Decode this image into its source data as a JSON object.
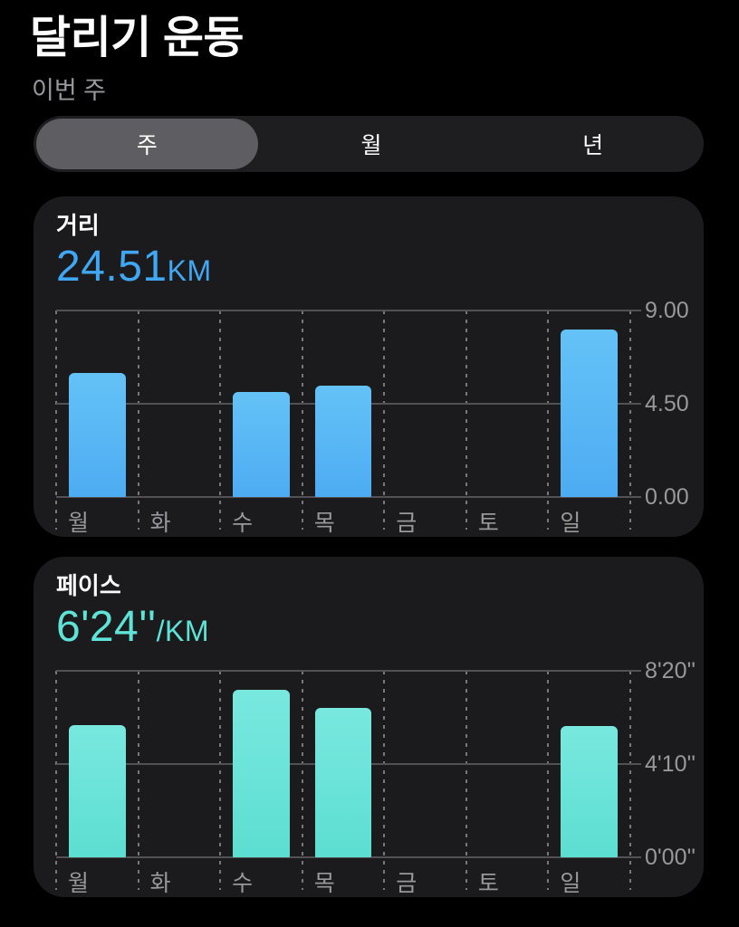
{
  "header": {
    "title": "달리기 운동",
    "subtitle": "이번 주"
  },
  "segmented_control": {
    "options": [
      {
        "label": "주",
        "selected": true
      },
      {
        "label": "월",
        "selected": false
      },
      {
        "label": "년",
        "selected": false
      }
    ]
  },
  "cards": [
    {
      "metric_label": "거리",
      "value": "24.51",
      "unit": "KM",
      "accent_color": "#3fa7f3",
      "bar_gradient_top": "#64c2f7",
      "bar_gradient_bottom": "#4dacf2"
    },
    {
      "metric_label": "페이스",
      "value": "6'24''",
      "unit": "/KM",
      "accent_color": "#5fe3d7",
      "bar_gradient_top": "#79e8df",
      "bar_gradient_bottom": "#5cded1"
    }
  ],
  "chart_data": [
    {
      "type": "bar",
      "title": "거리",
      "values_unit": "km",
      "categories": [
        "월",
        "화",
        "수",
        "목",
        "금",
        "토",
        "일"
      ],
      "values": [
        5.98,
        0,
        5.09,
        5.37,
        0,
        0,
        8.07
      ],
      "ylim": [
        0,
        9
      ],
      "yticks": [
        {
          "value": 9,
          "label": "9.00"
        },
        {
          "value": 4.5,
          "label": "4.50"
        },
        {
          "value": 0,
          "label": "0.00"
        }
      ],
      "legend": "none",
      "grid": {
        "horizontal": "solid",
        "vertical": "dashed",
        "ticks_side": "right"
      }
    },
    {
      "type": "bar",
      "title": "페이스",
      "values_unit": "seconds_per_km",
      "categories": [
        "월",
        "화",
        "수",
        "목",
        "금",
        "토",
        "일"
      ],
      "values": [
        355,
        0,
        448,
        401,
        0,
        0,
        352
      ],
      "ylim": [
        0,
        500
      ],
      "yticks": [
        {
          "value": 500,
          "label": "8'20''"
        },
        {
          "value": 250,
          "label": "4'10''"
        },
        {
          "value": 0,
          "label": "0'00''"
        }
      ],
      "legend": "none",
      "grid": {
        "horizontal": "solid",
        "vertical": "dashed",
        "ticks_side": "right"
      }
    }
  ],
  "theme": {
    "page_background": "#000000",
    "card_background": "#1b1b1e",
    "text_primary": "#ffffff",
    "text_secondary": "#98989d",
    "grid_line": "#515156",
    "segmented_track": "#1e1e20",
    "segmented_selected": "#5d5d62"
  }
}
